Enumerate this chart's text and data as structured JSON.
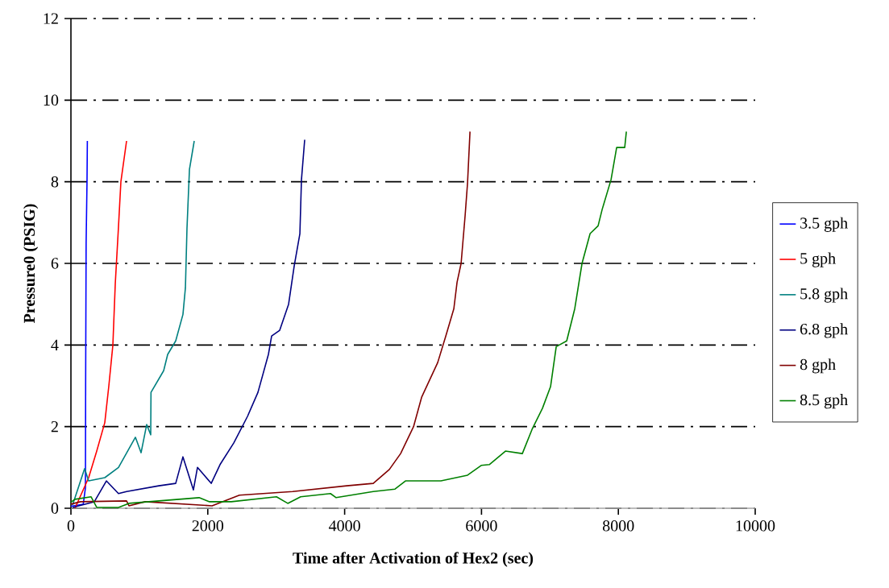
{
  "chart_data": {
    "type": "line",
    "xlabel": "Time after Activation of Hex2 (sec)",
    "ylabel": "Pressure0 (PSIG)",
    "xlim": [
      0,
      10000
    ],
    "xticks": [
      0,
      2000,
      4000,
      6000,
      8000,
      10000
    ],
    "ylim": [
      0,
      12
    ],
    "yticks": [
      0,
      2,
      4,
      6,
      8,
      10,
      12
    ],
    "grid": "y",
    "legend": "right",
    "marker": "none",
    "line_style": "solid",
    "series": [
      {
        "name": "3.5 gph",
        "color": "#0000ff",
        "x": [
          0,
          180,
          212,
          215,
          222,
          235,
          240
        ],
        "values": [
          0.05,
          0.1,
          0.5,
          3,
          6.5,
          8,
          9
        ]
      },
      {
        "name": "5 gph",
        "color": "#ff0000",
        "x": [
          59,
          259,
          377,
          495,
          554,
          613,
          648,
          695,
          730,
          813
        ],
        "values": [
          0.0,
          0.75,
          1.4,
          2.1,
          3.0,
          4.0,
          5.5,
          6.9,
          8.0,
          9.0
        ]
      },
      {
        "name": "5.8 gph",
        "color": "#008080",
        "x": [
          24,
          200,
          259,
          495,
          695,
          942,
          1025,
          1107,
          1166,
          1170,
          1355,
          1414,
          1531,
          1637,
          1673,
          1696,
          1732,
          1802
        ],
        "values": [
          0.08,
          0.97,
          0.67,
          0.75,
          1.0,
          1.74,
          1.36,
          2.05,
          1.8,
          2.84,
          3.37,
          3.77,
          4.1,
          4.75,
          5.4,
          6.86,
          8.3,
          9.0
        ]
      },
      {
        "name": "6.8 gph",
        "color": "#000080",
        "x": [
          24,
          342,
          518,
          695,
          813,
          1284,
          1531,
          1637,
          1790,
          1849,
          2050,
          2179,
          2380,
          2580,
          2733,
          2886,
          2933,
          3051,
          3181,
          3263,
          3346,
          3369,
          3416
        ],
        "values": [
          0.02,
          0.16,
          0.67,
          0.36,
          0.41,
          0.55,
          0.61,
          1.26,
          0.45,
          1.0,
          0.61,
          1.07,
          1.6,
          2.25,
          2.84,
          3.77,
          4.22,
          4.36,
          5.0,
          5.94,
          6.73,
          8.05,
          9.03
        ]
      },
      {
        "name": "8 gph",
        "color": "#800000",
        "x": [
          0,
          141,
          813,
          848,
          1084,
          2062,
          2462,
          3240,
          4029,
          4418,
          4653,
          4818,
          5007,
          5125,
          5360,
          5478,
          5596,
          5643,
          5702,
          5761,
          5796,
          5832
        ],
        "values": [
          0.1,
          0.16,
          0.18,
          0.06,
          0.16,
          0.06,
          0.32,
          0.41,
          0.55,
          0.61,
          0.95,
          1.34,
          2.0,
          2.72,
          3.57,
          4.22,
          4.89,
          5.54,
          6.0,
          7.18,
          7.97,
          9.23
        ]
      },
      {
        "name": "8.5 gph",
        "color": "#008000",
        "x": [
          0,
          59,
          295,
          377,
          695,
          848,
          1284,
          1873,
          2026,
          2344,
          3004,
          3169,
          3357,
          3793,
          3876,
          4418,
          4736,
          4889,
          5407,
          5796,
          5996,
          6114,
          6350,
          6597,
          6738,
          6891,
          7009,
          7092,
          7245,
          7363,
          7469,
          7587,
          7704,
          7763,
          7893,
          7975,
          8093,
          8117
        ],
        "values": [
          0.15,
          0.22,
          0.28,
          0.02,
          0.02,
          0.12,
          0.18,
          0.26,
          0.16,
          0.16,
          0.28,
          0.12,
          0.28,
          0.36,
          0.26,
          0.41,
          0.47,
          0.67,
          0.67,
          0.81,
          1.05,
          1.07,
          1.4,
          1.34,
          1.93,
          2.45,
          2.98,
          3.96,
          4.1,
          4.89,
          6.0,
          6.73,
          6.92,
          7.32,
          8.05,
          8.84,
          8.84,
          9.23
        ]
      }
    ]
  }
}
